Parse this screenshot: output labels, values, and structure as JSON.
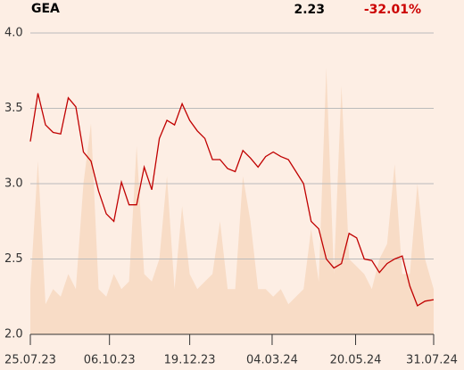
{
  "chart_data": {
    "type": "line",
    "title": "GEA",
    "last_price": 2.23,
    "change": "-32.01%",
    "change_color": "#cc0000",
    "x": [
      "2023-07-25",
      "2023-08-01",
      "2023-08-08",
      "2023-08-15",
      "2023-08-22",
      "2023-08-29",
      "2023-09-05",
      "2023-09-12",
      "2023-09-19",
      "2023-09-26",
      "2023-10-03",
      "2023-10-10",
      "2023-10-17",
      "2023-10-24",
      "2023-10-31",
      "2023-11-07",
      "2023-11-14",
      "2023-11-21",
      "2023-11-28",
      "2023-12-05",
      "2023-12-12",
      "2023-12-19",
      "2023-12-26",
      "2024-01-02",
      "2024-01-09",
      "2024-01-16",
      "2024-01-23",
      "2024-01-30",
      "2024-02-06",
      "2024-02-13",
      "2024-02-20",
      "2024-02-27",
      "2024-03-05",
      "2024-03-12",
      "2024-03-19",
      "2024-03-26",
      "2024-04-02",
      "2024-04-09",
      "2024-04-16",
      "2024-04-23",
      "2024-04-30",
      "2024-05-07",
      "2024-05-14",
      "2024-05-21",
      "2024-05-28",
      "2024-06-04",
      "2024-06-11",
      "2024-06-18",
      "2024-06-25",
      "2024-07-02",
      "2024-07-09",
      "2024-07-16",
      "2024-07-23",
      "2024-07-31"
    ],
    "series": [
      {
        "color": "#f8dcc6",
        "style": "area",
        "values": [
          2.3,
          3.15,
          2.2,
          2.3,
          2.25,
          2.4,
          2.3,
          3.0,
          3.4,
          2.3,
          2.25,
          2.4,
          2.3,
          2.35,
          3.25,
          2.4,
          2.35,
          2.5,
          3.05,
          2.3,
          2.85,
          2.4,
          2.3,
          2.35,
          2.4,
          2.75,
          2.3,
          2.3,
          3.05,
          2.75,
          2.3,
          2.3,
          2.25,
          2.3,
          2.2,
          2.25,
          2.3,
          2.7,
          2.35,
          3.77,
          2.4,
          3.65,
          2.5,
          2.45,
          2.4,
          2.3,
          2.5,
          2.6,
          3.13,
          2.4,
          2.4,
          3.0,
          2.5,
          2.3
        ]
      },
      {
        "color": "#c00000",
        "style": "line",
        "values": [
          3.28,
          3.6,
          3.39,
          3.34,
          3.33,
          3.57,
          3.51,
          3.21,
          3.15,
          2.95,
          2.8,
          2.75,
          3.01,
          2.86,
          2.86,
          3.11,
          2.96,
          3.3,
          3.42,
          3.39,
          3.53,
          3.42,
          3.35,
          3.3,
          3.16,
          3.16,
          3.1,
          3.08,
          3.22,
          3.17,
          3.11,
          3.18,
          3.21,
          3.18,
          3.16,
          3.08,
          3.0,
          2.75,
          2.7,
          2.5,
          2.44,
          2.47,
          2.67,
          2.64,
          2.5,
          2.49,
          2.41,
          2.47,
          2.5,
          2.52,
          2.32,
          2.19,
          2.22,
          2.23
        ]
      }
    ],
    "xlim": [
      "2023-07-25",
      "2024-07-31"
    ],
    "xticks": [
      {
        "value": "2023-07-25",
        "label": "25.07.23"
      },
      {
        "value": "2023-10-06",
        "label": "06.10.23"
      },
      {
        "value": "2023-12-19",
        "label": "19.12.23"
      },
      {
        "value": "2024-03-04",
        "label": "04.03.24"
      },
      {
        "value": "2024-05-20",
        "label": "20.05.24"
      },
      {
        "value": "2024-07-31",
        "label": "31.07.24"
      }
    ],
    "ylim": [
      2.0,
      4.0
    ],
    "yticks": [
      {
        "value": 2.0,
        "label": "2.0"
      },
      {
        "value": 2.5,
        "label": "2.5"
      },
      {
        "value": 3.0,
        "label": "3.0"
      },
      {
        "value": 3.5,
        "label": "3.5"
      },
      {
        "value": 4.0,
        "label": "4.0"
      }
    ],
    "grid": true
  }
}
